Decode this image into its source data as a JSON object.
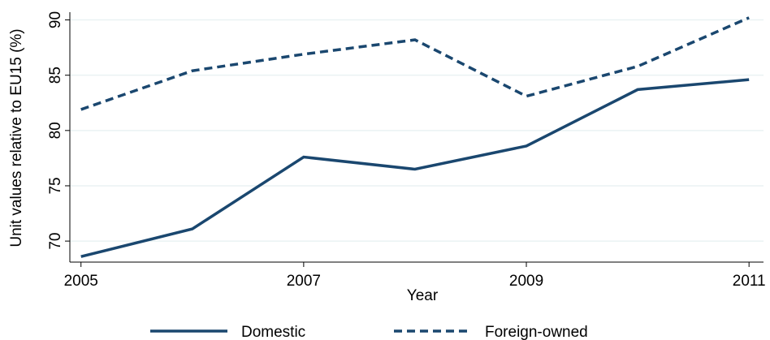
{
  "chart_data": {
    "type": "line",
    "x": [
      2005,
      2006,
      2007,
      2008,
      2009,
      2010,
      2011
    ],
    "series": [
      {
        "name": "Domestic",
        "color": "#1a476f",
        "dash": "solid",
        "values": [
          68.6,
          71.1,
          77.6,
          76.5,
          78.6,
          83.7,
          84.6
        ]
      },
      {
        "name": "Foreign-owned",
        "color": "#1a476f",
        "dash": "dashed",
        "values": [
          81.9,
          85.4,
          86.9,
          88.2,
          83.1,
          85.8,
          90.2
        ]
      }
    ],
    "xlabel": "Year",
    "ylabel": "Unit values relative to EU15 (%)",
    "xlim": [
      2004.9,
      2011.13
    ],
    "xticks": [
      2005,
      2007,
      2009,
      2011
    ],
    "ylim": [
      68.1,
      90.7
    ],
    "yticks": [
      70,
      75,
      80,
      85,
      90
    ],
    "grid": true,
    "legend": "bottom"
  }
}
